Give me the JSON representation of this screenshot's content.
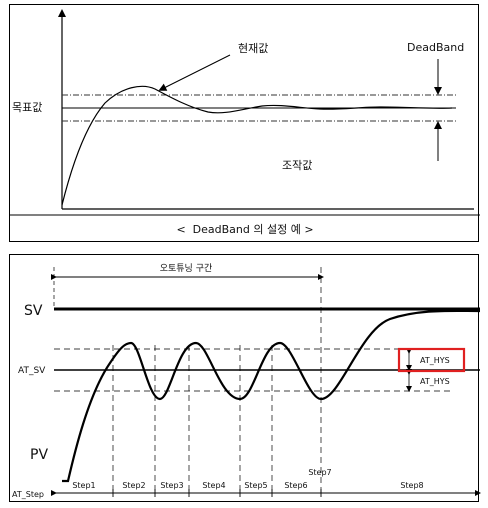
{
  "top": {
    "labels": {
      "current": "현재값",
      "deadband": "DeadBand",
      "target": "목표값",
      "manip": "조작값",
      "caption": "<  DeadBand 의 설정 예 >"
    }
  },
  "bottom": {
    "labels": {
      "section": "오토튜닝 구간",
      "sv": "SV",
      "pv": "PV",
      "at_sv": "AT_SV",
      "at_step": "AT_Step",
      "hys_top": "AT_HYS",
      "hys_bottom": "AT_HYS"
    },
    "steps": [
      "Step1",
      "Step2",
      "Step3",
      "Step4",
      "Step5",
      "Step6",
      "Step7",
      "Step8"
    ],
    "highlight_color": "#e02020"
  }
}
